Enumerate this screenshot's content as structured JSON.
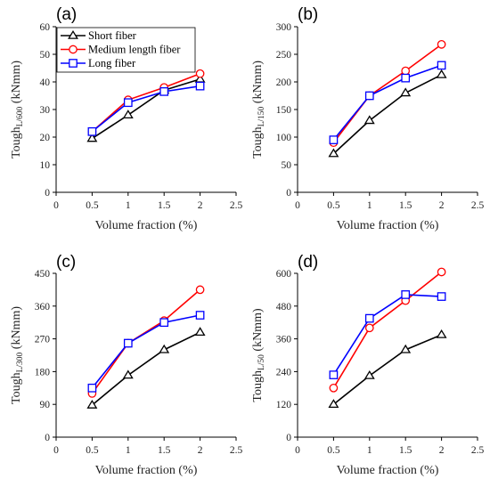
{
  "colors": {
    "short": "#000000",
    "medium": "#ff0000",
    "long": "#0000ff",
    "axis": "#000000"
  },
  "legend": {
    "entries": [
      {
        "key": "short",
        "label": "Short fiber",
        "marker": "triangle"
      },
      {
        "key": "medium",
        "label": "Medium length fiber",
        "marker": "circle"
      },
      {
        "key": "long",
        "label": "Long fiber",
        "marker": "square"
      }
    ]
  },
  "chart_data": [
    {
      "type": "line",
      "panel_label": "(a)",
      "ylabel_main": "Tough",
      "ylabel_sub": "L/600",
      "ylabel_unit": " (kNmm)",
      "xlabel": "Volume fraction (%)",
      "xlim": [
        0,
        2.5
      ],
      "ylim": [
        0,
        60
      ],
      "xticks": [
        "0",
        "0.5",
        "1",
        "1.5",
        "2",
        "2.5"
      ],
      "yticks": [
        "0",
        "10",
        "20",
        "30",
        "40",
        "50",
        "60"
      ],
      "x": [
        0.5,
        1,
        1.5,
        2
      ],
      "series": [
        {
          "key": "short",
          "name": "Short fiber",
          "values": [
            19.5,
            28,
            37,
            41
          ]
        },
        {
          "key": "medium",
          "name": "Medium length fiber",
          "values": [
            22,
            33.5,
            38,
            43
          ]
        },
        {
          "key": "long",
          "name": "Long fiber",
          "values": [
            22,
            32.5,
            36.5,
            38.5
          ]
        }
      ],
      "legend_position": "top-left"
    },
    {
      "type": "line",
      "panel_label": "(b)",
      "ylabel_main": "Tough",
      "ylabel_sub": "L/150",
      "ylabel_unit": " (kNmm)",
      "xlabel": "Volume fraction (%)",
      "xlim": [
        0,
        2.5
      ],
      "ylim": [
        0,
        300
      ],
      "xticks": [
        "0",
        "0.5",
        "1",
        "1.5",
        "2",
        "2.5"
      ],
      "yticks": [
        "0",
        "50",
        "100",
        "150",
        "200",
        "250",
        "300"
      ],
      "x": [
        0.5,
        1,
        1.5,
        2
      ],
      "series": [
        {
          "key": "short",
          "name": "Short fiber",
          "values": [
            70,
            130,
            180,
            213
          ]
        },
        {
          "key": "medium",
          "name": "Medium length fiber",
          "values": [
            90,
            175,
            220,
            268
          ]
        },
        {
          "key": "long",
          "name": "Long fiber",
          "values": [
            95,
            175,
            207,
            230
          ]
        }
      ]
    },
    {
      "type": "line",
      "panel_label": "(c)",
      "ylabel_main": "Tough",
      "ylabel_sub": "L/300",
      "ylabel_unit": " (kNmm)",
      "xlabel": "Volume fraction (%)",
      "xlim": [
        0,
        2.5
      ],
      "ylim": [
        0,
        450
      ],
      "xticks": [
        "0",
        "0.5",
        "1",
        "1.5",
        "2",
        "2.5"
      ],
      "yticks": [
        "0",
        "90",
        "180",
        "270",
        "360",
        "450"
      ],
      "x": [
        0.5,
        1,
        1.5,
        2
      ],
      "series": [
        {
          "key": "short",
          "name": "Short fiber",
          "values": [
            88,
            170,
            240,
            288
          ]
        },
        {
          "key": "medium",
          "name": "Medium length fiber",
          "values": [
            120,
            258,
            320,
            405
          ]
        },
        {
          "key": "long",
          "name": "Long fiber",
          "values": [
            135,
            258,
            315,
            335
          ]
        }
      ]
    },
    {
      "type": "line",
      "panel_label": "(d)",
      "ylabel_main": "Tough",
      "ylabel_sub": "L/50",
      "ylabel_unit": " (kNmm)",
      "xlabel": "Volume fraction (%)",
      "xlim": [
        0,
        2.5
      ],
      "ylim": [
        0,
        600
      ],
      "xticks": [
        "0",
        "0.5",
        "1",
        "1.5",
        "2",
        "2.5"
      ],
      "yticks": [
        "0",
        "120",
        "240",
        "360",
        "480",
        "600"
      ],
      "x": [
        0.5,
        1,
        1.5,
        2
      ],
      "series": [
        {
          "key": "short",
          "name": "Short fiber",
          "values": [
            120,
            225,
            320,
            375
          ]
        },
        {
          "key": "medium",
          "name": "Medium length fiber",
          "values": [
            180,
            400,
            500,
            605
          ]
        },
        {
          "key": "long",
          "name": "Long fiber",
          "values": [
            228,
            435,
            522,
            515
          ]
        }
      ]
    }
  ]
}
